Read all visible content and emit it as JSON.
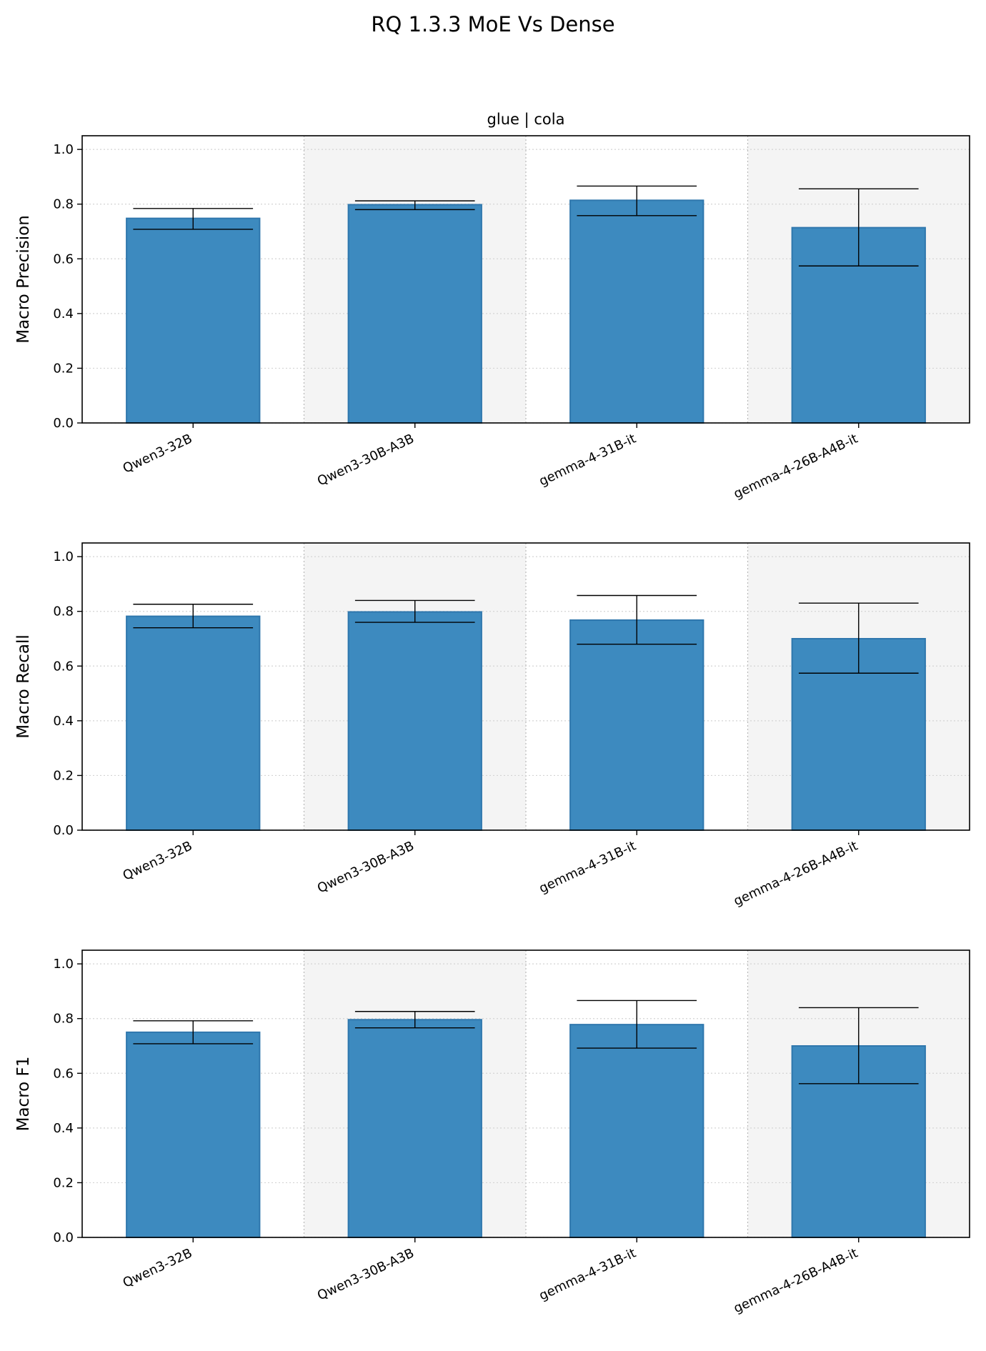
{
  "figure": {
    "title": "RQ 1.3.3 MoE Vs Dense",
    "colors": {
      "bar": "#3d8abf",
      "bar_edge": "#2f77ad",
      "band": "#f4f4f4",
      "grid": "#d4d4d4",
      "errorbar": "#000000"
    }
  },
  "chart_data": [
    {
      "type": "bar",
      "title": "glue | cola",
      "ylabel": "Macro Precision",
      "ylim": [
        0,
        1.05
      ],
      "yticks": [
        0.0,
        0.2,
        0.4,
        0.6,
        0.8,
        1.0
      ],
      "grid": true,
      "categories": [
        "Qwen3-32B",
        "Qwen3-30B-A3B",
        "gemma-4-31B-it",
        "gemma-4-26B-A4B-it"
      ],
      "values": [
        0.748,
        0.798,
        0.814,
        0.714
      ],
      "error_low": [
        0.708,
        0.78,
        0.758,
        0.574
      ],
      "error_high": [
        0.784,
        0.812,
        0.866,
        0.856
      ]
    },
    {
      "type": "bar",
      "title": "",
      "ylabel": "Macro Recall",
      "ylim": [
        0,
        1.05
      ],
      "yticks": [
        0.0,
        0.2,
        0.4,
        0.6,
        0.8,
        1.0
      ],
      "grid": true,
      "categories": [
        "Qwen3-32B",
        "Qwen3-30B-A3B",
        "gemma-4-31B-it",
        "gemma-4-26B-A4B-it"
      ],
      "values": [
        0.782,
        0.798,
        0.768,
        0.7
      ],
      "error_low": [
        0.74,
        0.76,
        0.68,
        0.574
      ],
      "error_high": [
        0.826,
        0.84,
        0.858,
        0.83
      ]
    },
    {
      "type": "bar",
      "title": "",
      "ylabel": "Macro F1",
      "ylim": [
        0,
        1.05
      ],
      "yticks": [
        0.0,
        0.2,
        0.4,
        0.6,
        0.8,
        1.0
      ],
      "grid": true,
      "categories": [
        "Qwen3-32B",
        "Qwen3-30B-A3B",
        "gemma-4-31B-it",
        "gemma-4-26B-A4B-it"
      ],
      "values": [
        0.75,
        0.796,
        0.778,
        0.7
      ],
      "error_low": [
        0.708,
        0.766,
        0.692,
        0.562
      ],
      "error_high": [
        0.792,
        0.826,
        0.866,
        0.84
      ]
    }
  ]
}
